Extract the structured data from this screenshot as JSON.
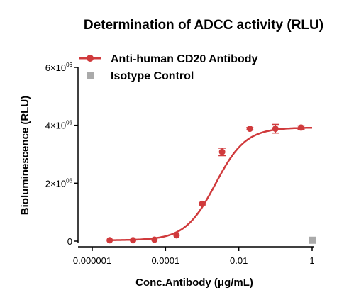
{
  "chart_data": {
    "type": "line",
    "title": "Determination of  ADCC activity (RLU)",
    "xlabel": "Conc.Antibody (μg/mL)",
    "ylabel": "Bioluminescence (RLU)",
    "x_scale": "log",
    "xlim": [
      5e-07,
      1.5
    ],
    "ylim": [
      0,
      6000000
    ],
    "x_ticks": [
      {
        "value": 1e-06,
        "label": "0.000001"
      },
      {
        "value": 0.0001,
        "label": "0.0001"
      },
      {
        "value": 0.01,
        "label": "0.01"
      },
      {
        "value": 1,
        "label": "1"
      }
    ],
    "y_ticks": [
      {
        "value": 0,
        "label": "0",
        "exp": ""
      },
      {
        "value": 2000000,
        "label": "2×10",
        "exp": "06"
      },
      {
        "value": 4000000,
        "label": "4×10",
        "exp": "06"
      },
      {
        "value": 6000000,
        "label": "6×10",
        "exp": "06"
      }
    ],
    "legend_position": "top-left",
    "series": [
      {
        "name": "Anti-human CD20 Antibody",
        "color": "#d03a3c",
        "marker": "circle",
        "x": [
          3e-06,
          1.3e-05,
          5e-05,
          0.0002,
          0.001,
          0.0035,
          0.02,
          0.1,
          0.5
        ],
        "y": [
          30000,
          30000,
          50000,
          200000,
          1290000,
          3080000,
          3880000,
          3880000,
          3920000
        ],
        "err": [
          0,
          0,
          0,
          0,
          40000,
          130000,
          40000,
          150000,
          60000
        ]
      },
      {
        "name": "Isotype Control",
        "color": "#aaaaaa",
        "marker": "square",
        "x": [
          1
        ],
        "y": [
          30000
        ],
        "err": [
          0
        ]
      }
    ]
  }
}
